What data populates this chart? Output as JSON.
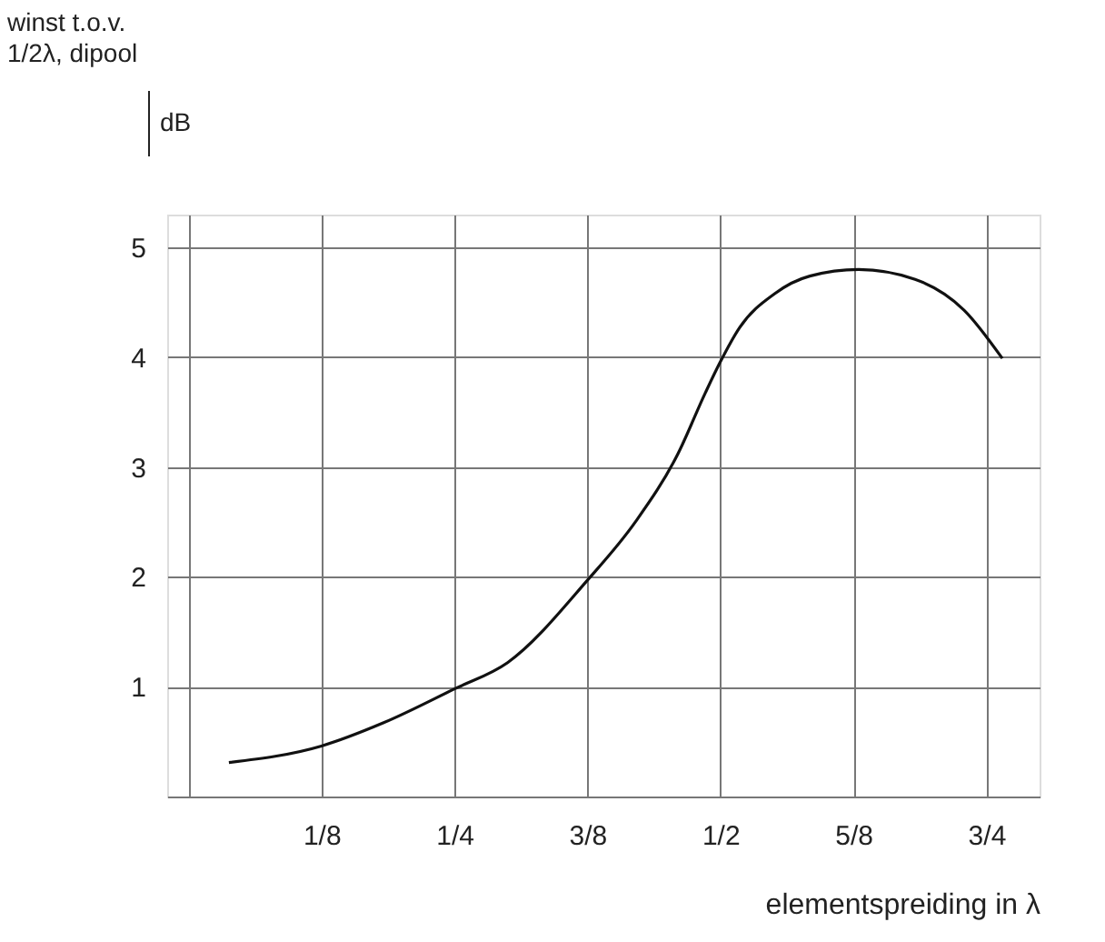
{
  "chart_data": {
    "type": "line",
    "xlabel": "elementspreiding in λ",
    "annotations": [
      "winst t.o.v.\n1/2λ, dipool",
      "dB"
    ],
    "x": [
      0.038,
      0.125,
      0.183,
      0.25,
      0.3,
      0.375,
      0.42,
      0.46,
      0.486,
      0.5,
      0.518,
      0.551,
      0.584,
      0.63,
      0.683,
      0.729,
      0.765
    ],
    "series": [
      {
        "color": "#111111",
        "values": [
          0.31,
          0.46,
          0.67,
          0.98,
          1.22,
          1.97,
          2.5,
          3.12,
          3.68,
          3.96,
          4.27,
          4.58,
          4.74,
          4.8,
          4.71,
          4.43,
          3.99
        ]
      }
    ],
    "xlim": [
      -0.02,
      0.8
    ],
    "xticks": [
      {
        "value": 0,
        "label": null
      },
      {
        "value": 0.125,
        "label": "1/8"
      },
      {
        "value": 0.25,
        "label": "1/4"
      },
      {
        "value": 0.375,
        "label": "3/8"
      },
      {
        "value": 0.5,
        "label": "1/2"
      },
      {
        "value": 0.625,
        "label": "5/8"
      },
      {
        "value": 0.75,
        "label": "3/4"
      }
    ],
    "ylim": [
      0,
      5.3
    ],
    "yticks": [
      {
        "value": 0,
        "label": null
      },
      1,
      2,
      3,
      4,
      5
    ],
    "grid": true,
    "marker": "none",
    "line_style": "solid"
  }
}
